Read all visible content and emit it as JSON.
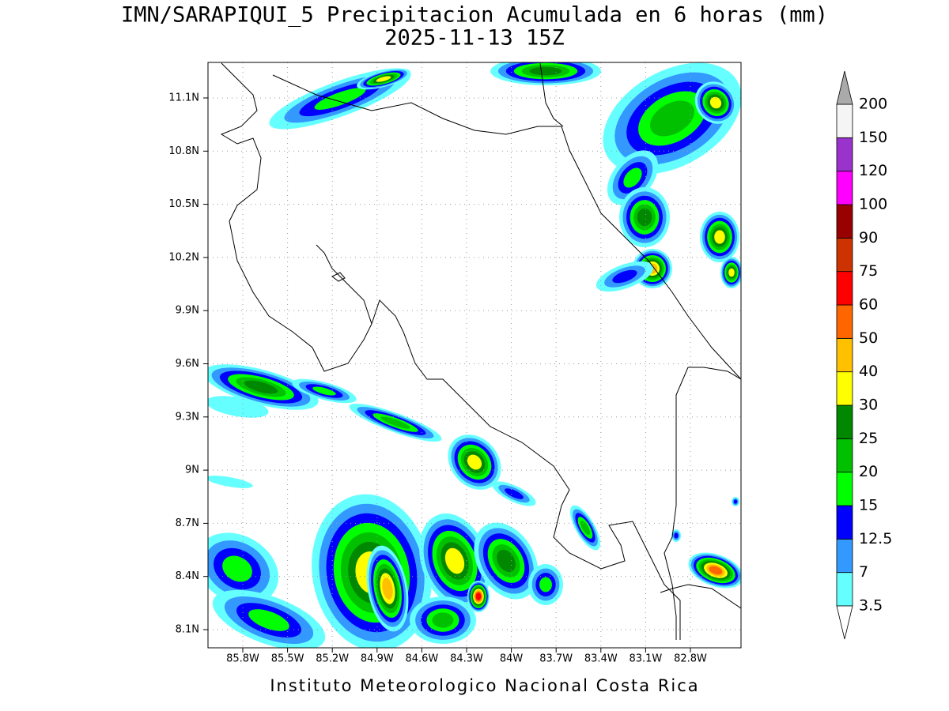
{
  "header": {
    "title": "IMN/SARAPIQUI_5 Precipitacion Acumulada en 6 horas (mm)",
    "subtitle": "2025-11-13 15Z"
  },
  "map": {
    "longitudes": [
      "85.8W",
      "85.5W",
      "85.2W",
      "84.9W",
      "84.6W",
      "84.3W",
      "84W",
      "83.7W",
      "83.4W",
      "83.1W",
      "82.8W"
    ],
    "latitudes": [
      "11.1N",
      "10.8N",
      "10.5N",
      "10.2N",
      "9.9N",
      "9.6N",
      "9.3N",
      "9N",
      "8.7N",
      "8.4N",
      "8.1N"
    ]
  },
  "colorbar": {
    "levels": [
      3.5,
      7,
      12.5,
      15,
      20,
      25,
      30,
      40,
      50,
      60,
      75,
      90,
      100,
      120,
      150,
      200
    ],
    "colors": [
      "#66ffff",
      "#3399ff",
      "#0000ff",
      "#00ff00",
      "#00c000",
      "#008800",
      "#ffff00",
      "#ffc000",
      "#ff6600",
      "#ff0000",
      "#cc3300",
      "#990000",
      "#ff00ff",
      "#9933cc",
      "#f5f5f5"
    ],
    "under_color": "#ffffff",
    "over_color": "#aaaaaa"
  },
  "footer": "Instituto Meteorologico Nacional Costa Rica"
}
